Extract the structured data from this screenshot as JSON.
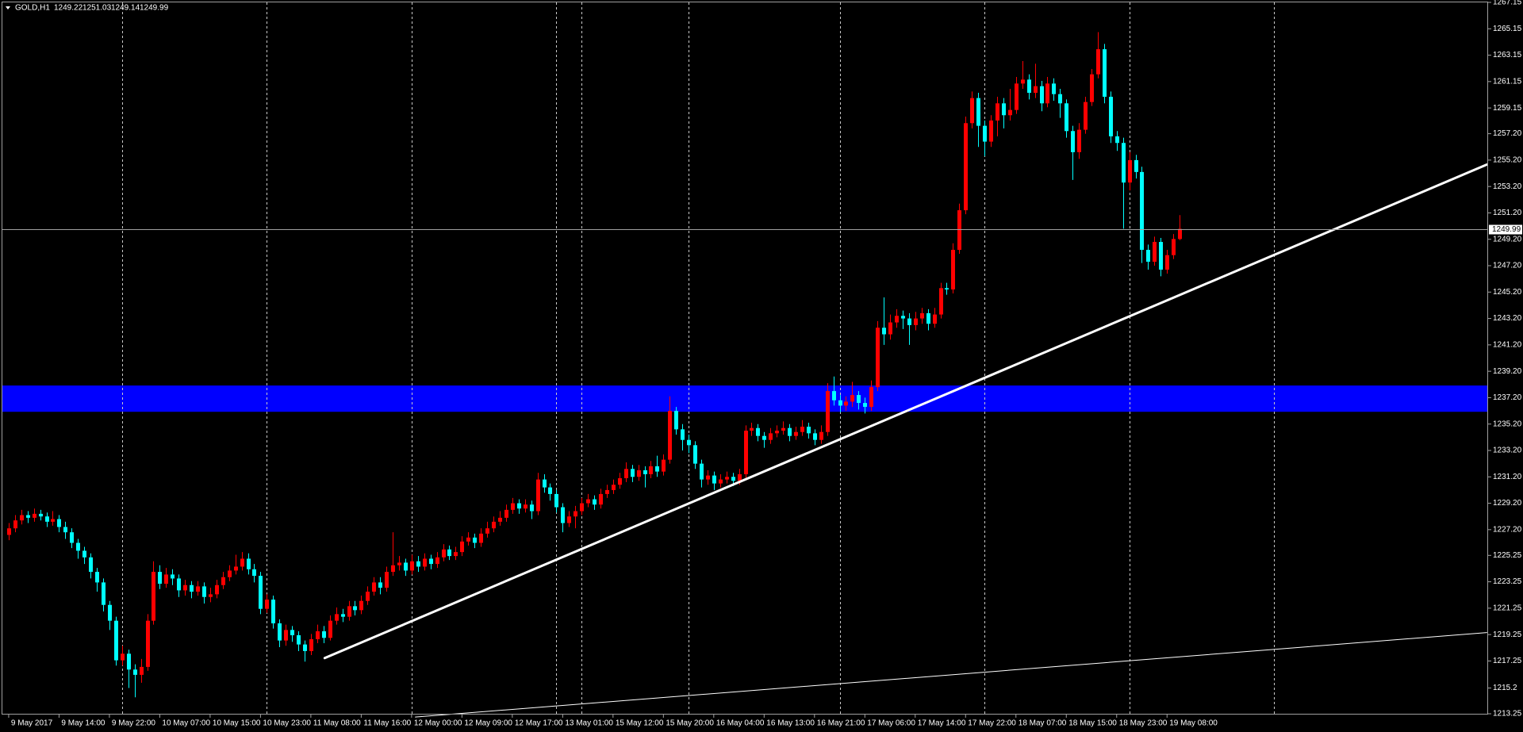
{
  "chart_data": {
    "type": "candlestick",
    "title": "GOLD,H1",
    "up_color": "#ff0000",
    "down_color": "#00ffff",
    "candles": [
      [
        1226.8,
        1227.7,
        1226.4,
        1227.3
      ],
      [
        1227.3,
        1228.3,
        1227.0,
        1227.9
      ],
      [
        1227.9,
        1228.7,
        1227.6,
        1228.3
      ],
      [
        1228.3,
        1228.6,
        1227.7,
        1228.1
      ],
      [
        1228.1,
        1228.8,
        1227.8,
        1228.4
      ],
      [
        1228.4,
        1228.7,
        1227.9,
        1228.2
      ],
      [
        1228.2,
        1228.5,
        1227.4,
        1227.8
      ],
      [
        1227.8,
        1228.6,
        1227.5,
        1228.0
      ],
      [
        1228.0,
        1228.3,
        1227.0,
        1227.4
      ],
      [
        1227.4,
        1227.8,
        1226.5,
        1227.0
      ],
      [
        1227.0,
        1227.3,
        1225.8,
        1226.2
      ],
      [
        1226.2,
        1226.5,
        1225.0,
        1225.6
      ],
      [
        1225.6,
        1225.9,
        1224.6,
        1225.1
      ],
      [
        1225.1,
        1225.4,
        1223.5,
        1224.0
      ],
      [
        1224.0,
        1224.3,
        1222.5,
        1223.2
      ],
      [
        1223.2,
        1223.5,
        1221.0,
        1221.5
      ],
      [
        1221.5,
        1221.8,
        1219.6,
        1220.3
      ],
      [
        1220.3,
        1220.6,
        1216.9,
        1217.3
      ],
      [
        1217.3,
        1218.4,
        1216.9,
        1217.8
      ],
      [
        1217.8,
        1218.1,
        1215.2,
        1216.6
      ],
      [
        1216.6,
        1217.0,
        1214.5,
        1216.2
      ],
      [
        1216.2,
        1217.4,
        1215.6,
        1216.8
      ],
      [
        1216.8,
        1220.8,
        1216.5,
        1220.3
      ],
      [
        1220.3,
        1224.8,
        1220.0,
        1224.0
      ],
      [
        1224.0,
        1224.5,
        1222.7,
        1223.1
      ],
      [
        1223.1,
        1224.3,
        1222.8,
        1223.8
      ],
      [
        1223.8,
        1224.2,
        1223.0,
        1223.5
      ],
      [
        1223.5,
        1223.8,
        1222.1,
        1222.6
      ],
      [
        1222.6,
        1223.4,
        1222.2,
        1223.0
      ],
      [
        1223.0,
        1223.3,
        1222.0,
        1222.5
      ],
      [
        1222.5,
        1223.3,
        1222.2,
        1222.9
      ],
      [
        1222.9,
        1223.2,
        1221.6,
        1222.1
      ],
      [
        1222.1,
        1222.8,
        1221.7,
        1222.3
      ],
      [
        1222.3,
        1223.4,
        1222.0,
        1223.0
      ],
      [
        1223.0,
        1224.0,
        1222.7,
        1223.6
      ],
      [
        1223.6,
        1224.5,
        1223.3,
        1224.1
      ],
      [
        1224.1,
        1225.3,
        1223.8,
        1224.4
      ],
      [
        1224.4,
        1225.5,
        1224.1,
        1225.0
      ],
      [
        1225.0,
        1225.4,
        1223.8,
        1224.2
      ],
      [
        1224.2,
        1224.6,
        1223.2,
        1223.7
      ],
      [
        1223.7,
        1224.0,
        1220.8,
        1221.2
      ],
      [
        1221.2,
        1222.3,
        1220.9,
        1221.9
      ],
      [
        1221.9,
        1222.2,
        1219.7,
        1220.1
      ],
      [
        1220.1,
        1220.4,
        1218.3,
        1218.8
      ],
      [
        1218.8,
        1220.0,
        1218.4,
        1219.6
      ],
      [
        1219.6,
        1219.9,
        1218.7,
        1219.2
      ],
      [
        1219.2,
        1219.5,
        1218.0,
        1218.5
      ],
      [
        1218.5,
        1218.8,
        1217.2,
        1218.0
      ],
      [
        1218.0,
        1219.3,
        1217.7,
        1218.9
      ],
      [
        1218.9,
        1220.0,
        1218.6,
        1219.5
      ],
      [
        1219.5,
        1219.9,
        1218.6,
        1219.0
      ],
      [
        1219.0,
        1220.7,
        1218.8,
        1220.3
      ],
      [
        1220.3,
        1221.3,
        1220.0,
        1220.8
      ],
      [
        1220.8,
        1221.2,
        1220.2,
        1220.6
      ],
      [
        1220.6,
        1221.8,
        1220.3,
        1221.4
      ],
      [
        1221.4,
        1221.8,
        1220.7,
        1221.1
      ],
      [
        1221.1,
        1222.2,
        1220.8,
        1221.8
      ],
      [
        1221.8,
        1222.9,
        1221.5,
        1222.5
      ],
      [
        1222.5,
        1223.6,
        1222.2,
        1223.2
      ],
      [
        1223.2,
        1223.6,
        1222.3,
        1222.8
      ],
      [
        1222.8,
        1224.4,
        1222.5,
        1224.0
      ],
      [
        1224.0,
        1227.0,
        1223.7,
        1224.5
      ],
      [
        1224.5,
        1225.2,
        1224.1,
        1224.7
      ],
      [
        1224.7,
        1225.0,
        1223.7,
        1224.1
      ],
      [
        1224.1,
        1225.3,
        1223.8,
        1224.8
      ],
      [
        1224.8,
        1225.2,
        1224.0,
        1224.4
      ],
      [
        1224.4,
        1225.4,
        1224.1,
        1225.0
      ],
      [
        1225.0,
        1225.3,
        1224.2,
        1224.6
      ],
      [
        1224.6,
        1225.5,
        1224.3,
        1225.1
      ],
      [
        1225.1,
        1226.1,
        1224.8,
        1225.7
      ],
      [
        1225.7,
        1226.0,
        1224.9,
        1225.2
      ],
      [
        1225.2,
        1225.9,
        1224.9,
        1225.5
      ],
      [
        1225.5,
        1226.7,
        1225.2,
        1226.3
      ],
      [
        1226.3,
        1227.0,
        1226.0,
        1226.6
      ],
      [
        1226.6,
        1226.9,
        1225.8,
        1226.2
      ],
      [
        1226.2,
        1227.3,
        1225.9,
        1226.9
      ],
      [
        1226.9,
        1227.8,
        1226.6,
        1227.3
      ],
      [
        1227.3,
        1228.2,
        1227.0,
        1227.8
      ],
      [
        1227.8,
        1228.6,
        1227.5,
        1228.1
      ],
      [
        1228.1,
        1229.1,
        1227.8,
        1228.7
      ],
      [
        1228.7,
        1229.6,
        1228.4,
        1229.2
      ],
      [
        1229.2,
        1229.5,
        1228.4,
        1228.8
      ],
      [
        1228.8,
        1229.5,
        1228.5,
        1229.1
      ],
      [
        1229.1,
        1229.4,
        1228.0,
        1228.6
      ],
      [
        1228.6,
        1231.5,
        1228.3,
        1231.0
      ],
      [
        1231.0,
        1231.4,
        1230.0,
        1230.4
      ],
      [
        1230.4,
        1230.7,
        1229.4,
        1229.9
      ],
      [
        1229.9,
        1230.2,
        1228.5,
        1228.9
      ],
      [
        1228.9,
        1229.2,
        1227.0,
        1227.7
      ],
      [
        1227.7,
        1228.6,
        1227.4,
        1228.2
      ],
      [
        1228.2,
        1229.0,
        1227.3,
        1228.6
      ],
      [
        1228.6,
        1229.6,
        1228.3,
        1229.2
      ],
      [
        1229.2,
        1229.9,
        1228.9,
        1229.5
      ],
      [
        1229.5,
        1229.8,
        1228.7,
        1229.1
      ],
      [
        1229.1,
        1230.3,
        1228.8,
        1229.9
      ],
      [
        1229.9,
        1230.6,
        1229.6,
        1230.2
      ],
      [
        1230.2,
        1231.0,
        1229.9,
        1230.6
      ],
      [
        1230.6,
        1231.5,
        1230.3,
        1231.1
      ],
      [
        1231.1,
        1232.3,
        1230.8,
        1231.8
      ],
      [
        1231.8,
        1232.1,
        1230.8,
        1231.2
      ],
      [
        1231.2,
        1232.1,
        1230.9,
        1231.7
      ],
      [
        1231.7,
        1232.0,
        1230.4,
        1231.4
      ],
      [
        1231.4,
        1232.4,
        1231.1,
        1232.0
      ],
      [
        1232.0,
        1232.8,
        1231.2,
        1231.6
      ],
      [
        1231.6,
        1232.9,
        1231.3,
        1232.5
      ],
      [
        1232.5,
        1237.3,
        1232.2,
        1236.2
      ],
      [
        1236.2,
        1236.5,
        1234.4,
        1234.8
      ],
      [
        1234.8,
        1235.2,
        1233.2,
        1234.0
      ],
      [
        1234.0,
        1234.4,
        1233.0,
        1233.6
      ],
      [
        1233.6,
        1233.9,
        1231.8,
        1232.2
      ],
      [
        1232.2,
        1232.5,
        1230.4,
        1231.0
      ],
      [
        1231.0,
        1231.7,
        1230.6,
        1231.3
      ],
      [
        1231.3,
        1231.6,
        1230.2,
        1230.7
      ],
      [
        1230.7,
        1231.4,
        1230.4,
        1231.0
      ],
      [
        1231.0,
        1231.6,
        1230.7,
        1231.2
      ],
      [
        1231.2,
        1231.5,
        1230.5,
        1230.9
      ],
      [
        1230.9,
        1231.8,
        1230.6,
        1231.4
      ],
      [
        1231.4,
        1235.1,
        1231.1,
        1234.7
      ],
      [
        1234.7,
        1235.3,
        1234.3,
        1234.9
      ],
      [
        1234.9,
        1235.2,
        1233.9,
        1234.3
      ],
      [
        1234.3,
        1234.6,
        1233.4,
        1234.0
      ],
      [
        1234.0,
        1234.9,
        1233.7,
        1234.5
      ],
      [
        1234.5,
        1235.1,
        1234.2,
        1234.7
      ],
      [
        1234.7,
        1235.4,
        1234.4,
        1234.9
      ],
      [
        1234.9,
        1235.2,
        1233.9,
        1234.3
      ],
      [
        1234.3,
        1235.0,
        1234.0,
        1234.6
      ],
      [
        1234.6,
        1235.5,
        1234.3,
        1235.0
      ],
      [
        1235.0,
        1235.3,
        1234.1,
        1234.5
      ],
      [
        1234.5,
        1234.8,
        1233.6,
        1234.0
      ],
      [
        1234.0,
        1235.1,
        1233.7,
        1234.6
      ],
      [
        1234.6,
        1238.3,
        1234.3,
        1237.7
      ],
      [
        1237.7,
        1238.8,
        1236.6,
        1237.0
      ],
      [
        1237.0,
        1237.4,
        1236.1,
        1236.6
      ],
      [
        1236.6,
        1237.3,
        1236.2,
        1236.9
      ],
      [
        1236.9,
        1238.4,
        1236.5,
        1237.4
      ],
      [
        1237.4,
        1237.7,
        1236.3,
        1236.8
      ],
      [
        1236.8,
        1237.2,
        1236.0,
        1236.5
      ],
      [
        1236.5,
        1238.5,
        1236.2,
        1238.0
      ],
      [
        1238.0,
        1243.0,
        1237.7,
        1242.5
      ],
      [
        1242.5,
        1244.8,
        1241.2,
        1242.0
      ],
      [
        1242.0,
        1243.5,
        1241.6,
        1242.9
      ],
      [
        1242.9,
        1243.9,
        1242.5,
        1243.4
      ],
      [
        1243.4,
        1243.8,
        1242.4,
        1243.2
      ],
      [
        1243.2,
        1243.6,
        1241.2,
        1242.7
      ],
      [
        1242.7,
        1243.7,
        1242.3,
        1243.2
      ],
      [
        1243.2,
        1244.0,
        1242.8,
        1243.6
      ],
      [
        1243.6,
        1243.9,
        1242.3,
        1242.8
      ],
      [
        1242.8,
        1244.0,
        1242.5,
        1243.5
      ],
      [
        1243.5,
        1245.9,
        1243.2,
        1245.5
      ],
      [
        1245.5,
        1245.9,
        1245.0,
        1245.4
      ],
      [
        1245.4,
        1248.9,
        1245.1,
        1248.4
      ],
      [
        1248.4,
        1251.9,
        1248.1,
        1251.4
      ],
      [
        1251.4,
        1258.5,
        1251.1,
        1258.0
      ],
      [
        1258.0,
        1260.4,
        1257.6,
        1259.9
      ],
      [
        1259.9,
        1260.3,
        1256.2,
        1257.8
      ],
      [
        1257.8,
        1258.2,
        1255.5,
        1256.6
      ],
      [
        1256.6,
        1258.6,
        1256.2,
        1258.2
      ],
      [
        1258.2,
        1260.0,
        1257.0,
        1259.5
      ],
      [
        1259.5,
        1259.9,
        1257.6,
        1258.6
      ],
      [
        1258.6,
        1260.6,
        1258.2,
        1259.0
      ],
      [
        1259.0,
        1261.5,
        1258.7,
        1261.0
      ],
      [
        1261.0,
        1262.7,
        1260.6,
        1261.3
      ],
      [
        1261.3,
        1261.7,
        1259.8,
        1260.3
      ],
      [
        1260.3,
        1262.5,
        1259.9,
        1260.8
      ],
      [
        1260.8,
        1261.2,
        1258.9,
        1259.5
      ],
      [
        1259.5,
        1261.5,
        1259.2,
        1261.0
      ],
      [
        1261.0,
        1261.4,
        1259.7,
        1260.2
      ],
      [
        1260.2,
        1260.6,
        1258.4,
        1259.5
      ],
      [
        1259.5,
        1259.8,
        1256.9,
        1257.4
      ],
      [
        1257.4,
        1257.8,
        1253.7,
        1255.8
      ],
      [
        1255.8,
        1258.0,
        1255.3,
        1257.5
      ],
      [
        1257.5,
        1260.0,
        1257.2,
        1259.6
      ],
      [
        1259.6,
        1262.1,
        1259.3,
        1261.7
      ],
      [
        1261.7,
        1264.9,
        1261.4,
        1263.6
      ],
      [
        1263.6,
        1264.0,
        1259.5,
        1260.0
      ],
      [
        1260.0,
        1260.4,
        1256.5,
        1257.0
      ],
      [
        1257.0,
        1257.4,
        1255.9,
        1256.5
      ],
      [
        1256.5,
        1256.9,
        1250.0,
        1253.5
      ],
      [
        1253.5,
        1255.8,
        1252.9,
        1255.2
      ],
      [
        1255.2,
        1255.6,
        1253.8,
        1254.3
      ],
      [
        1254.3,
        1254.7,
        1247.4,
        1248.4
      ],
      [
        1248.4,
        1248.8,
        1246.9,
        1247.5
      ],
      [
        1247.5,
        1249.4,
        1247.2,
        1249.0
      ],
      [
        1249.0,
        1249.3,
        1246.4,
        1246.9
      ],
      [
        1246.9,
        1248.4,
        1246.6,
        1248.0
      ],
      [
        1248.0,
        1249.6,
        1247.7,
        1249.22
      ],
      [
        1249.22,
        1251.03,
        1249.14,
        1249.99
      ]
    ],
    "xlim": [
      -1,
      235
    ],
    "xticks": [
      {
        "value": 0,
        "label": "9 May 2017"
      },
      {
        "value": 8,
        "label": "9 May 14:00"
      },
      {
        "value": 16,
        "label": "9 May 22:00"
      },
      {
        "value": 24,
        "label": "10 May 07:00"
      },
      {
        "value": 32,
        "label": "10 May 15:00"
      },
      {
        "value": 40,
        "label": "10 May 23:00"
      },
      {
        "value": 48,
        "label": "11 May 08:00"
      },
      {
        "value": 56,
        "label": "11 May 16:00"
      },
      {
        "value": 64,
        "label": "12 May 00:00"
      },
      {
        "value": 72,
        "label": "12 May 09:00"
      },
      {
        "value": 80,
        "label": "12 May 17:00"
      },
      {
        "value": 88,
        "label": "13 May 01:00"
      },
      {
        "value": 96,
        "label": "15 May 12:00"
      },
      {
        "value": 104,
        "label": "15 May 20:00"
      },
      {
        "value": 112,
        "label": "16 May 04:00"
      },
      {
        "value": 120,
        "label": "16 May 13:00"
      },
      {
        "value": 128,
        "label": "16 May 21:00"
      },
      {
        "value": 136,
        "label": "17 May 06:00"
      },
      {
        "value": 144,
        "label": "17 May 14:00"
      },
      {
        "value": 152,
        "label": "17 May 22:00"
      },
      {
        "value": 160,
        "label": "18 May 07:00"
      },
      {
        "value": 168,
        "label": "18 May 15:00"
      },
      {
        "value": 176,
        "label": "18 May 23:00"
      },
      {
        "value": 184,
        "label": "19 May 08:00"
      }
    ],
    "ylim": [
      1213.25,
      1267.15
    ],
    "yticks": [
      1267.15,
      1265.15,
      1263.15,
      1261.15,
      1259.15,
      {
        "value": 1257.2,
        "label": "1257.20"
      },
      {
        "value": 1255.2,
        "label": "1255.20"
      },
      {
        "value": 1253.2,
        "label": "1253.20"
      },
      {
        "value": 1251.2,
        "label": "1251.20"
      },
      {
        "value": 1249.2,
        "label": "1249.20"
      },
      {
        "value": 1247.2,
        "label": "1247.20"
      },
      {
        "value": 1245.2,
        "label": "1245.20"
      },
      {
        "value": 1243.2,
        "label": "1243.20"
      },
      {
        "value": 1241.2,
        "label": "1241.20"
      },
      {
        "value": 1239.2,
        "label": "1239.20"
      },
      {
        "value": 1237.2,
        "label": "1237.20"
      },
      {
        "value": 1235.2,
        "label": "1235.20"
      },
      {
        "value": 1233.2,
        "label": "1233.20"
      },
      {
        "value": 1231.2,
        "label": "1231.20"
      },
      {
        "value": 1229.2,
        "label": "1229.20"
      },
      {
        "value": 1227.2,
        "label": "1227.20"
      },
      1225.25,
      1223.25,
      1221.25,
      1219.25,
      1217.25,
      1215.2,
      1213.25
    ],
    "vgrid": [
      18,
      41,
      64,
      87,
      91,
      108,
      132,
      155,
      178,
      201
    ],
    "zone": {
      "ylim": [
        1236.13,
        1238.12
      ],
      "color": "#0000ff"
    },
    "trendlines": [
      {
        "x": [
          50.2,
          234.8
        ],
        "y": [
          1217.47,
          1254.86
        ],
        "color": "#ffffff",
        "width": 3
      },
      {
        "x": [
          64.6,
          234.8
        ],
        "y": [
          1213.0,
          1219.4
        ],
        "color": "#ffffff",
        "width": 1
      }
    ]
  }
}
